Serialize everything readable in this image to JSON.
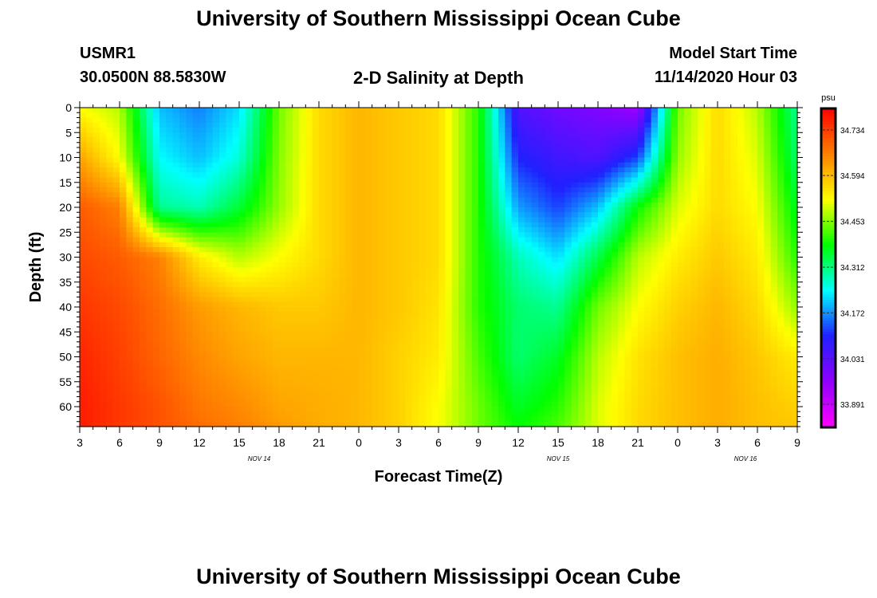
{
  "header": {
    "title": "University of Southern Mississippi Ocean Cube",
    "station_id": "USMR1",
    "station_coords": "30.0500N 88.5830W",
    "chart_title": "2-D Salinity at Depth",
    "model_start_label": "Model Start Time",
    "model_start_value": "11/14/2020 Hour 03"
  },
  "footer": {
    "title": "University of Southern Mississippi Ocean Cube"
  },
  "chart_data": {
    "type": "heatmap",
    "title": "2-D Salinity at Depth",
    "xlabel": "Forecast Time(Z)",
    "ylabel": "Depth (ft)",
    "x_tick_labels": [
      "3",
      "6",
      "9",
      "12",
      "15",
      "18",
      "21",
      "0",
      "3",
      "6",
      "9",
      "12",
      "15",
      "18",
      "21",
      "0",
      "3",
      "6",
      "9"
    ],
    "date_labels": [
      {
        "text": "NOV 14",
        "tick_index": 4.5
      },
      {
        "text": "NOV 15",
        "tick_index": 12
      },
      {
        "text": "NOV 16",
        "tick_index": 16.7
      }
    ],
    "y_ticks": [
      0,
      5,
      10,
      15,
      20,
      25,
      30,
      35,
      40,
      45,
      50,
      55,
      60
    ],
    "ylim": [
      0,
      64
    ],
    "y_reversed": true,
    "x_range_hours": [
      0,
      54
    ],
    "colorbar": {
      "unit": "psu",
      "range": [
        33.82,
        34.8
      ],
      "tick_values": [
        34.734,
        34.594,
        34.453,
        34.312,
        34.172,
        34.031,
        33.891
      ],
      "tick_labels": [
        "34.734",
        "34.594",
        "34.453",
        "34.312",
        "34.172",
        "34.031",
        "33.891"
      ],
      "colors": [
        "#ff00ff",
        "#9000ff",
        "#2020ff",
        "#00ffff",
        "#00ff00",
        "#ffff00",
        "#ff8000",
        "#ff0000"
      ]
    },
    "salinity_grid_note": "rows = depth (ft), columns = forecast hours since 11/14/2020 Hour 03",
    "grid_hours": [
      0,
      3,
      6,
      9,
      12,
      15,
      18,
      21,
      24,
      27,
      30,
      33,
      36,
      39,
      42,
      45,
      48,
      51,
      54
    ],
    "grid_depths": [
      0,
      10,
      20,
      30,
      40,
      50,
      60,
      64
    ],
    "salinity": [
      [
        34.52,
        34.48,
        34.2,
        34.16,
        34.22,
        34.44,
        34.56,
        34.6,
        34.58,
        34.56,
        34.4,
        34.04,
        34.0,
        33.98,
        33.94,
        34.44,
        34.56,
        34.48,
        34.3
      ],
      [
        34.62,
        34.52,
        34.24,
        34.2,
        34.26,
        34.45,
        34.56,
        34.6,
        34.58,
        34.56,
        34.4,
        34.1,
        34.06,
        34.04,
        34.12,
        34.46,
        34.56,
        34.5,
        34.32
      ],
      [
        34.7,
        34.66,
        34.3,
        34.28,
        34.35,
        34.46,
        34.56,
        34.6,
        34.58,
        34.56,
        34.4,
        34.18,
        34.12,
        34.2,
        34.38,
        34.5,
        34.56,
        34.52,
        34.36
      ],
      [
        34.72,
        34.7,
        34.66,
        34.54,
        34.48,
        34.52,
        34.56,
        34.6,
        34.58,
        34.56,
        34.4,
        34.28,
        34.22,
        34.34,
        34.48,
        34.54,
        34.58,
        34.54,
        34.4
      ],
      [
        34.74,
        34.72,
        34.68,
        34.63,
        34.6,
        34.58,
        34.58,
        34.6,
        34.58,
        34.55,
        34.4,
        34.32,
        34.3,
        34.44,
        34.52,
        34.57,
        34.6,
        34.56,
        34.46
      ],
      [
        34.76,
        34.73,
        34.69,
        34.65,
        34.62,
        34.6,
        34.6,
        34.6,
        34.57,
        34.54,
        34.42,
        34.32,
        34.36,
        34.48,
        34.55,
        34.59,
        34.61,
        34.58,
        34.54
      ],
      [
        34.77,
        34.74,
        34.71,
        34.67,
        34.65,
        34.62,
        34.61,
        34.6,
        34.57,
        34.52,
        34.44,
        34.36,
        34.4,
        34.5,
        34.56,
        34.59,
        34.61,
        34.59,
        34.57
      ],
      [
        34.77,
        34.74,
        34.71,
        34.68,
        34.66,
        34.63,
        34.61,
        34.6,
        34.57,
        34.52,
        34.44,
        34.38,
        34.42,
        34.5,
        34.56,
        34.59,
        34.61,
        34.59,
        34.58
      ]
    ]
  }
}
